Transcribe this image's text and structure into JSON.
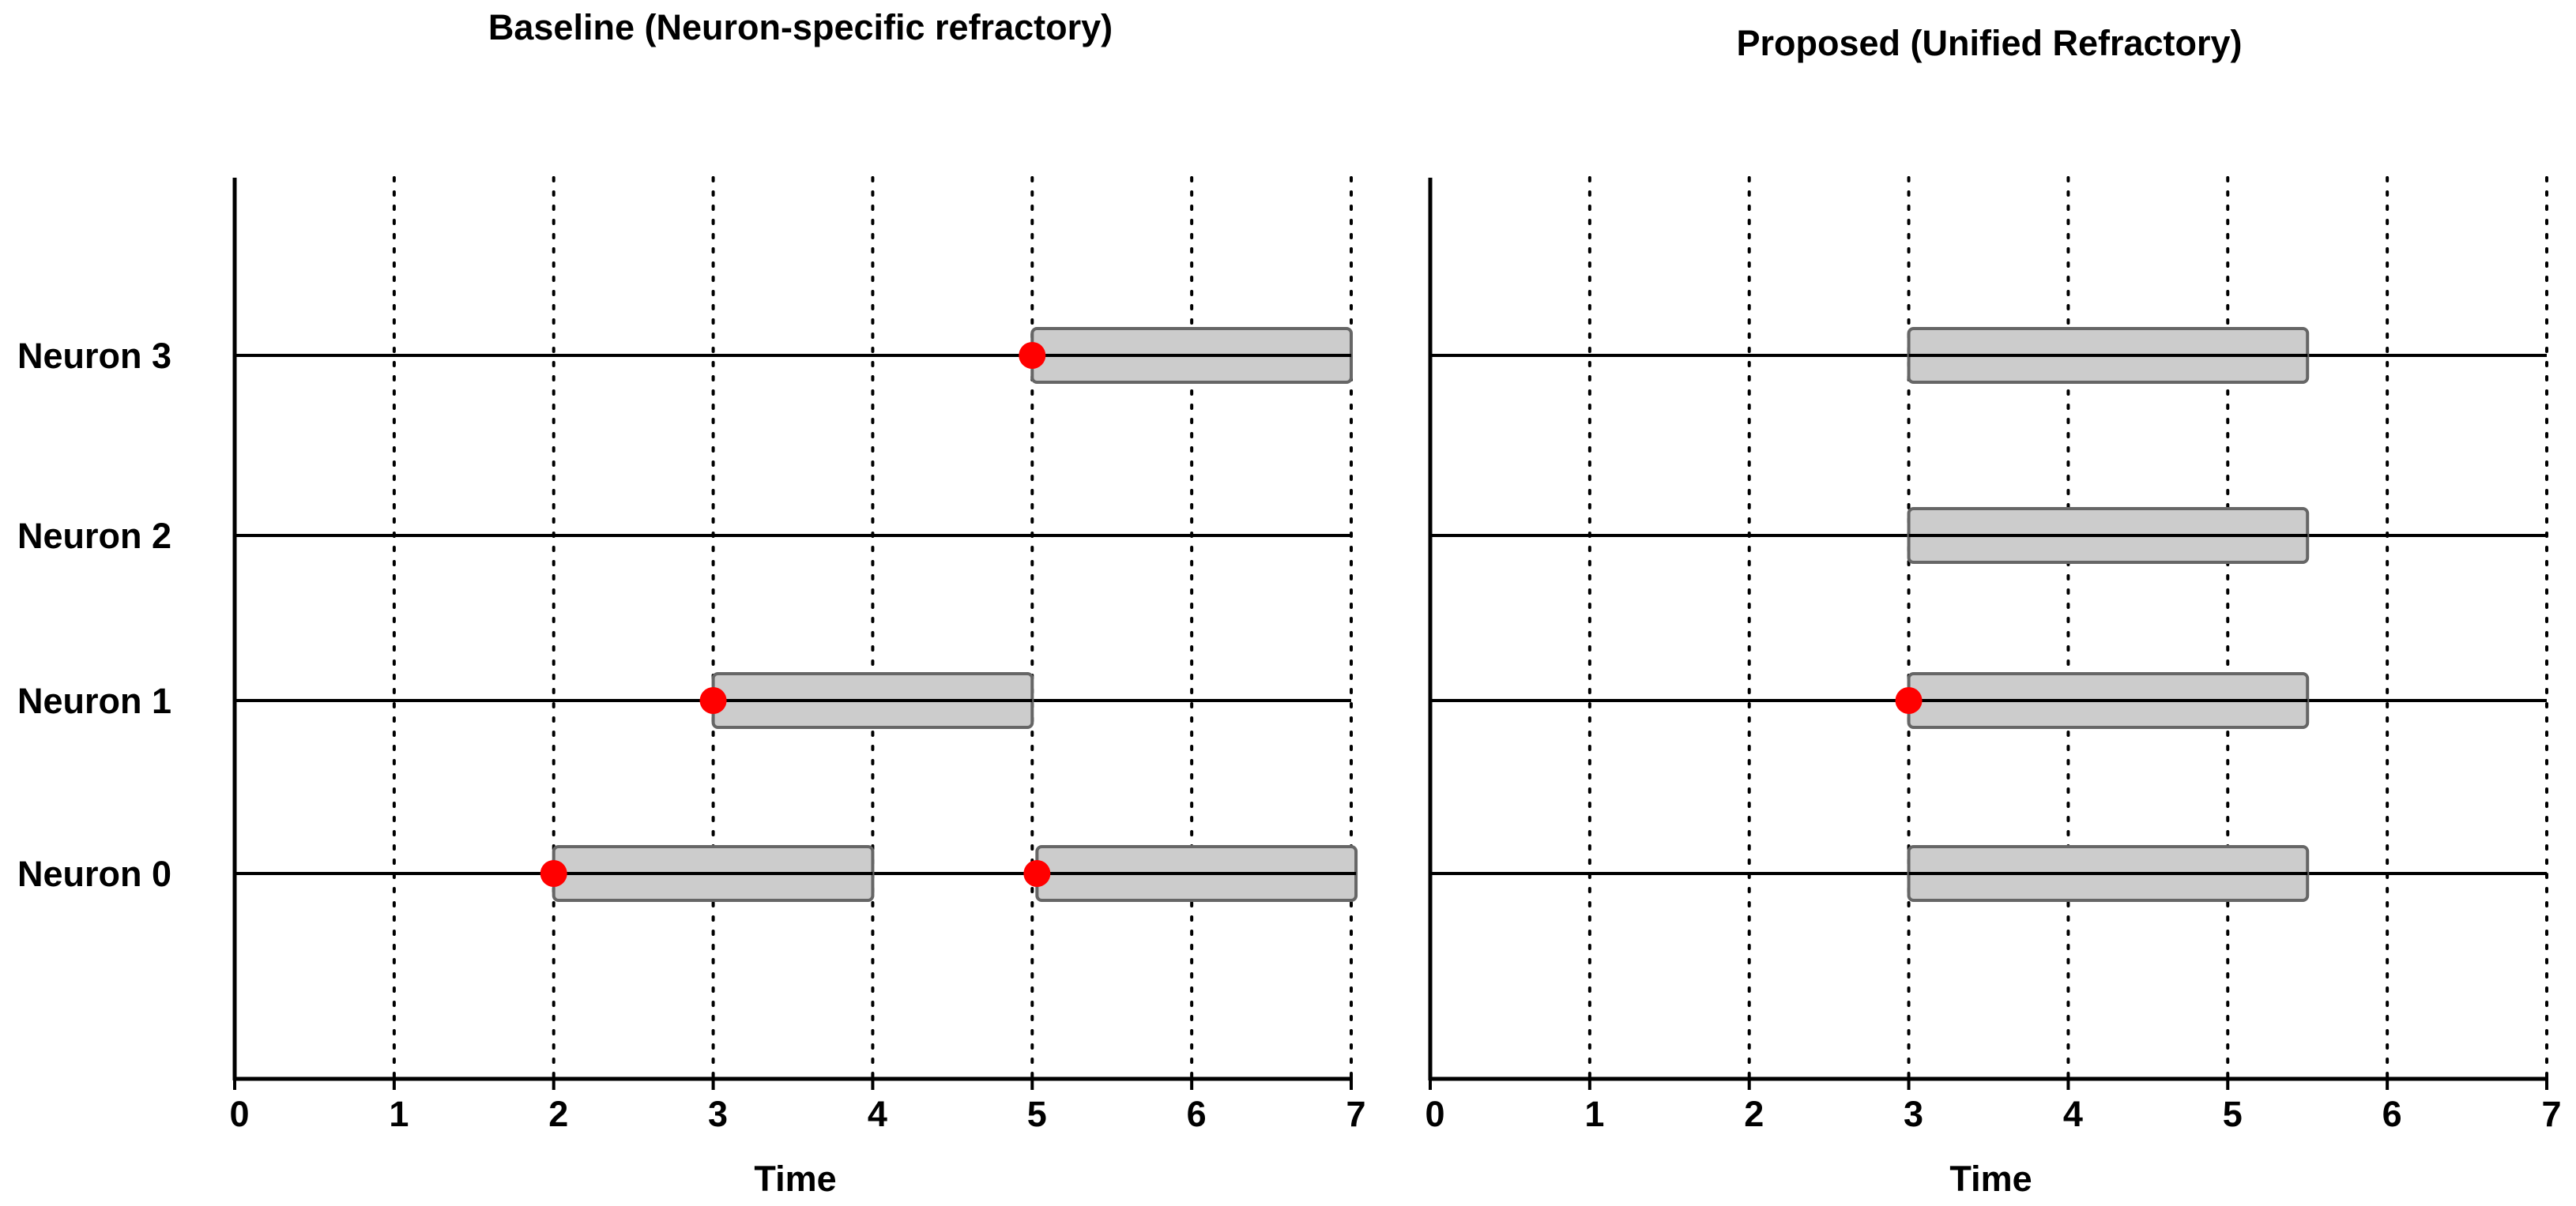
{
  "chart_data": [
    {
      "type": "timeline",
      "title": "Baseline (Neuron-specific refractory)",
      "xlabel": "Time",
      "xlim": [
        0,
        7
      ],
      "x_ticks": [
        "0",
        "1",
        "2",
        "3",
        "4",
        "5",
        "6",
        "7"
      ],
      "neurons": [
        "Neuron 0",
        "Neuron 1",
        "Neuron 2",
        "Neuron 3"
      ],
      "spikes": [
        {
          "neuron": 0,
          "t": 2.0
        },
        {
          "neuron": 0,
          "t": 5.03
        },
        {
          "neuron": 1,
          "t": 3.0
        },
        {
          "neuron": 3,
          "t": 5.0
        }
      ],
      "refractory_periods": [
        {
          "neuron": 0,
          "start": 2.0,
          "end": 4.0
        },
        {
          "neuron": 0,
          "start": 5.03,
          "end": 7.03
        },
        {
          "neuron": 1,
          "start": 3.0,
          "end": 5.0
        },
        {
          "neuron": 3,
          "start": 5.0,
          "end": 7.0
        }
      ],
      "vertical_gridlines": "dotted"
    },
    {
      "type": "timeline",
      "title": "Proposed (Unified Refractory)",
      "xlabel": "Time",
      "xlim": [
        0,
        7
      ],
      "x_ticks": [
        "0",
        "1",
        "2",
        "3",
        "4",
        "5",
        "6",
        "7"
      ],
      "neurons": [
        "Neuron 0",
        "Neuron 1",
        "Neuron 2",
        "Neuron 3"
      ],
      "spikes": [
        {
          "neuron": 1,
          "t": 3.0
        }
      ],
      "refractory_periods": [
        {
          "neuron": 0,
          "start": 3.0,
          "end": 5.5
        },
        {
          "neuron": 1,
          "start": 3.0,
          "end": 5.5
        },
        {
          "neuron": 2,
          "start": 3.0,
          "end": 5.5
        },
        {
          "neuron": 3,
          "start": 3.0,
          "end": 5.5
        }
      ],
      "vertical_gridlines": "dotted"
    }
  ],
  "colors": {
    "spike": "#ff0000",
    "refractory_fill": "#cccccc",
    "refractory_stroke": "#666666",
    "axis": "#000000"
  }
}
